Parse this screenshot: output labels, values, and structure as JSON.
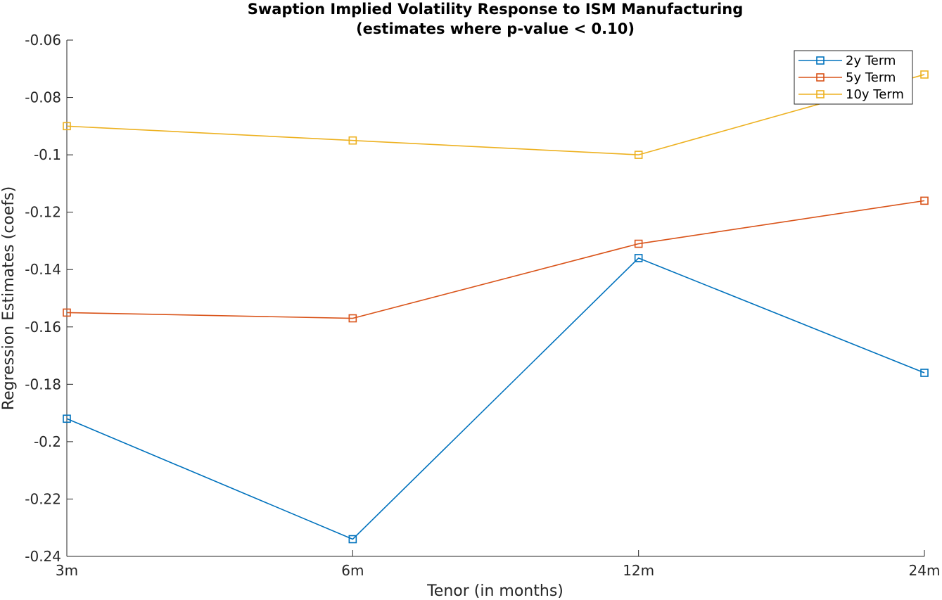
{
  "chart_data": {
    "type": "line",
    "title": "Swaption Implied Volatility Response to ISM Manufacturing",
    "subtitle": "(estimates where p-value < 0.10)",
    "xlabel": "Tenor (in months)",
    "ylabel": "Regression Estimates (coefs)",
    "categories": [
      "3m",
      "6m",
      "12m",
      "24m"
    ],
    "ylim": [
      -0.24,
      -0.06
    ],
    "yticks": [
      -0.06,
      -0.08,
      -0.1,
      -0.12,
      -0.14,
      -0.16,
      -0.18,
      -0.2,
      -0.22,
      -0.24
    ],
    "ytick_labels": [
      "-0.06",
      "-0.08",
      "-0.1",
      "-0.12",
      "-0.14",
      "-0.16",
      "-0.18",
      "-0.2",
      "-0.22",
      "-0.24"
    ],
    "grid": false,
    "legend_position": "top-right",
    "marker": "square",
    "series": [
      {
        "name": "2y Term",
        "color": "#0072bd",
        "values": [
          -0.192,
          -0.234,
          -0.136,
          -0.176
        ]
      },
      {
        "name": "5y Term",
        "color": "#d95319",
        "values": [
          -0.155,
          -0.157,
          -0.131,
          -0.116
        ]
      },
      {
        "name": "10y Term",
        "color": "#edb120",
        "values": [
          -0.09,
          -0.095,
          -0.1,
          -0.072
        ]
      }
    ]
  }
}
